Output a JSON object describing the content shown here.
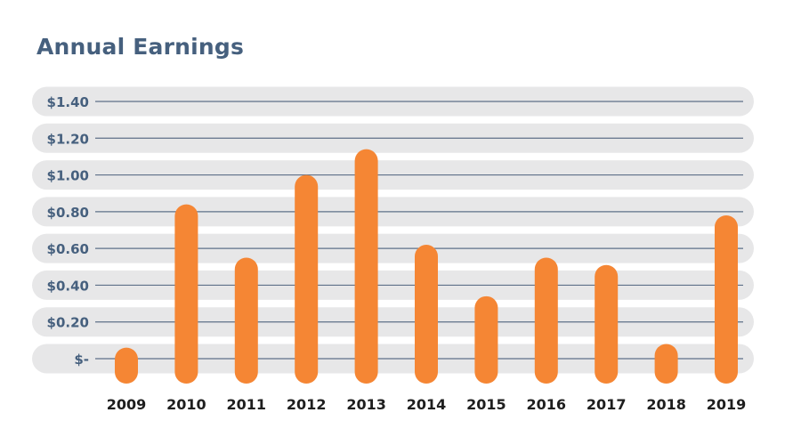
{
  "chart_data": {
    "type": "bar",
    "title": "Annual Earnings",
    "xlabel": "",
    "ylabel": "",
    "categories": [
      "2009",
      "2010",
      "2011",
      "2012",
      "2013",
      "2014",
      "2015",
      "2016",
      "2017",
      "2018",
      "2019"
    ],
    "values": [
      0.06,
      0.84,
      0.55,
      1.0,
      1.14,
      0.62,
      0.34,
      0.55,
      0.51,
      0.08,
      0.78
    ],
    "ylim": [
      0,
      1.4
    ],
    "yticks": [
      0,
      0.2,
      0.4,
      0.6,
      0.8,
      1.0,
      1.2,
      1.4
    ],
    "ytick_labels": [
      "$-",
      "$0.20",
      "$0.40",
      "$0.60",
      "$0.80",
      "$1.00",
      "$1.20",
      "$1.40"
    ],
    "bar_color": "#f58634",
    "band_color": "#e7e7e8",
    "gridline_color": "#5e7089",
    "grid": true,
    "legend": "none"
  }
}
